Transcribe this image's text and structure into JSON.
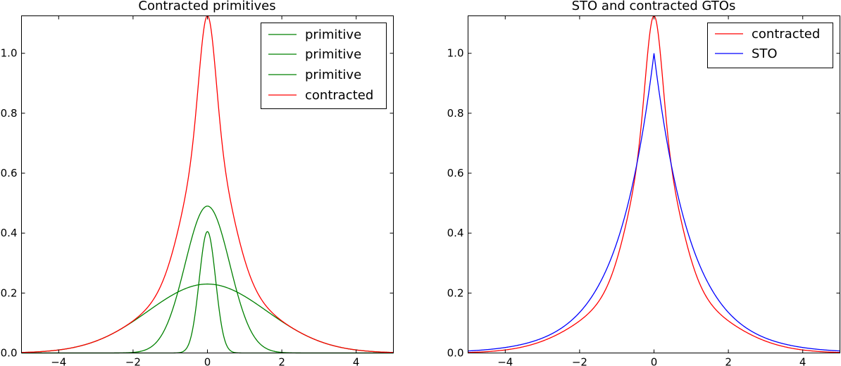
{
  "chart_data": [
    {
      "type": "line",
      "title": "Contracted primitives",
      "xlabel": "",
      "ylabel": "",
      "xlim": [
        -5,
        5
      ],
      "ylim": [
        0,
        1.125
      ],
      "xticks": [
        -4,
        -2,
        0,
        2,
        4
      ],
      "yticks": [
        0.0,
        0.2,
        0.4,
        0.6,
        0.8,
        1.0
      ],
      "xtick_labels": [
        "−4",
        "−2",
        "0",
        "2",
        "4"
      ],
      "ytick_labels": [
        "0.0",
        "0.2",
        "0.4",
        "0.6",
        "0.8",
        "1.0"
      ],
      "grid": false,
      "legend_position": "top-right",
      "series": [
        {
          "name": "primitive",
          "color": "#008000",
          "kind": "gaussian",
          "amplitude": 0.405,
          "width": 0.22
        },
        {
          "name": "primitive",
          "color": "#008000",
          "kind": "gaussian",
          "amplitude": 0.49,
          "width": 0.6
        },
        {
          "name": "primitive",
          "color": "#008000",
          "kind": "gaussian",
          "amplitude": 0.23,
          "width": 1.6
        },
        {
          "name": "contracted",
          "color": "#ff0000",
          "kind": "sum_of_gaussians",
          "peak": 1.125
        }
      ]
    },
    {
      "type": "line",
      "title": "STO and contracted GTOs",
      "xlabel": "",
      "ylabel": "",
      "xlim": [
        -5,
        5
      ],
      "ylim": [
        0,
        1.125
      ],
      "xticks": [
        -4,
        -2,
        0,
        2,
        4
      ],
      "yticks": [
        0.0,
        0.2,
        0.4,
        0.6,
        0.8,
        1.0
      ],
      "xtick_labels": [
        "−4",
        "−2",
        "0",
        "2",
        "4"
      ],
      "ytick_labels": [
        "0.0",
        "0.2",
        "0.4",
        "0.6",
        "0.8",
        "1.0"
      ],
      "grid": false,
      "legend_position": "top-right",
      "series": [
        {
          "name": "contracted",
          "color": "#ff0000",
          "kind": "sum_of_gaussians",
          "peak": 1.125
        },
        {
          "name": "STO",
          "color": "#0000ff",
          "kind": "exponential",
          "amplitude": 1.0,
          "decay": 1.0
        }
      ]
    }
  ]
}
